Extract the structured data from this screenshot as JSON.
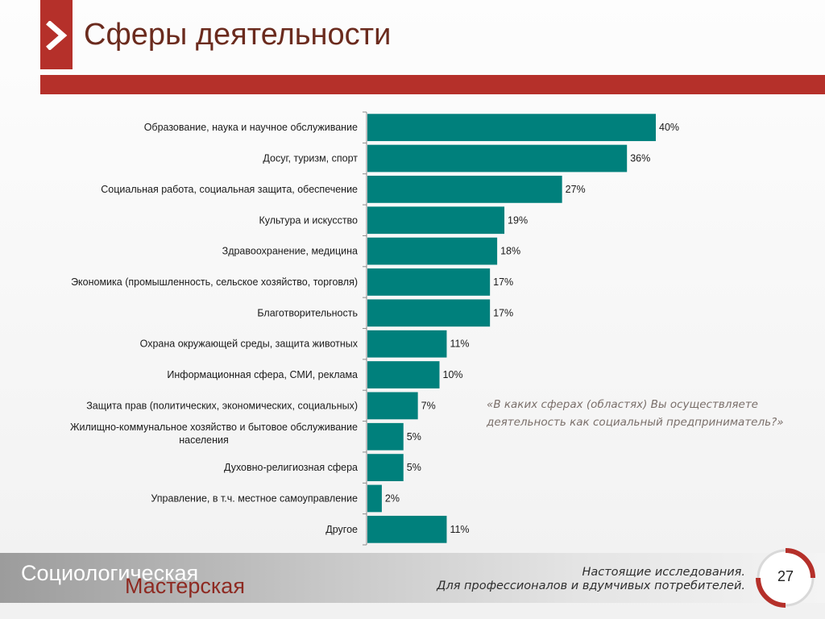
{
  "header": {
    "title": "Сферы деятельности",
    "logo_icon": "chevron-right-icon"
  },
  "colors": {
    "brand_red": "#b5302a",
    "bar_teal": "#00807c",
    "title_brown": "#6b2b1e",
    "question_gray": "#7a6f6a"
  },
  "question": {
    "text": "«В каких сферах (областях) Вы осуществляете деятельность как социальный предприниматель?»"
  },
  "chart_data": {
    "type": "bar",
    "orientation": "horizontal",
    "title": "",
    "xlabel": "",
    "ylabel": "",
    "xlim": [
      0,
      40
    ],
    "grid": false,
    "categories": [
      [
        "Образование, наука и научное обслуживание"
      ],
      [
        "Досуг, туризм, спорт"
      ],
      [
        "Социальная работа, социальная защита, обеспечение"
      ],
      [
        "Культура и искусство"
      ],
      [
        "Здравоохранение, медицина"
      ],
      [
        "Экономика (промышленность, сельское хозяйство, торговля)"
      ],
      [
        "Благотворительность"
      ],
      [
        "Охрана окружающей среды, защита животных"
      ],
      [
        "Информационная сфера, СМИ, реклама"
      ],
      [
        "Защита прав (политических, экономических, социальных)"
      ],
      [
        "Жилищно-коммунальное хозяйство и бытовое обслуживание",
        "населения"
      ],
      [
        "Духовно-религиозная сфера"
      ],
      [
        "Управление, в т.ч. местное самоуправление"
      ],
      [
        "Другое"
      ]
    ],
    "values": [
      40,
      36,
      27,
      19,
      18,
      17,
      17,
      11,
      10,
      7,
      5,
      5,
      2,
      11
    ],
    "value_labels": [
      "40%",
      "36%",
      "27%",
      "19%",
      "18%",
      "17%",
      "17%",
      "11%",
      "10%",
      "7%",
      "5%",
      "5%",
      "2%",
      "11%"
    ]
  },
  "footer": {
    "brand_line1": "Социологическая",
    "brand_line2": "Мастерская",
    "tagline_line1": "Настоящие исследования.",
    "tagline_line2": "Для профессионалов и вдумчивых потребителей.",
    "page_number": "27"
  }
}
